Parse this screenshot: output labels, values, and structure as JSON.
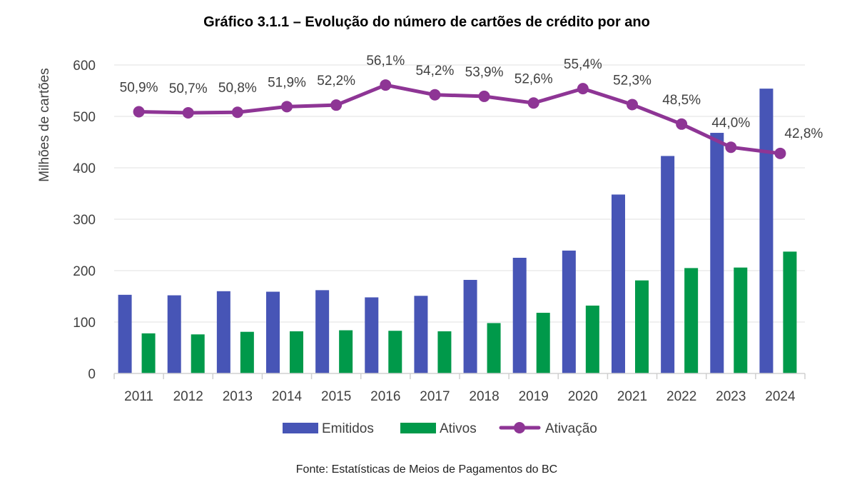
{
  "chart_data": {
    "type": "bar",
    "title": "Gráfico 3.1.1 – Evolução do número de cartões de crédito por ano",
    "xlabel": "",
    "ylabel": "Milhões de cartões",
    "ylim": [
      0,
      600
    ],
    "yticks": [
      "0",
      "100",
      "200",
      "300",
      "400",
      "500",
      "600"
    ],
    "y2lim": [
      0,
      60
    ],
    "grid": true,
    "legend_position": "bottom",
    "categories": [
      "2011",
      "2012",
      "2013",
      "2014",
      "2015",
      "2016",
      "2017",
      "2018",
      "2019",
      "2020",
      "2021",
      "2022",
      "2023",
      "2024"
    ],
    "series": [
      {
        "name": "Emitidos",
        "type": "bar",
        "color": "#4755B6",
        "values": [
          153,
          152,
          160,
          159,
          162,
          148,
          151,
          182,
          225,
          239,
          348,
          423,
          468,
          554
        ]
      },
      {
        "name": "Ativos",
        "type": "bar",
        "color": "#00994A",
        "values": [
          78,
          76,
          81,
          82,
          84,
          83,
          82,
          98,
          118,
          132,
          181,
          205,
          206,
          237
        ]
      },
      {
        "name": "Ativação",
        "type": "line",
        "axis": "secondary",
        "color": "#8E3595",
        "values": [
          50.9,
          50.7,
          50.8,
          51.9,
          52.2,
          56.1,
          54.2,
          53.9,
          52.6,
          55.4,
          52.3,
          48.5,
          44.0,
          42.8
        ],
        "labels": [
          "50,9%",
          "50,7%",
          "50,8%",
          "51,9%",
          "52,2%",
          "56,1%",
          "54,2%",
          "53,9%",
          "52,6%",
          "55,4%",
          "52,3%",
          "48,5%",
          "44,0%",
          "42,8%"
        ]
      }
    ],
    "source": "Fonte: Estatísticas de Meios de Pagamentos do BC"
  }
}
